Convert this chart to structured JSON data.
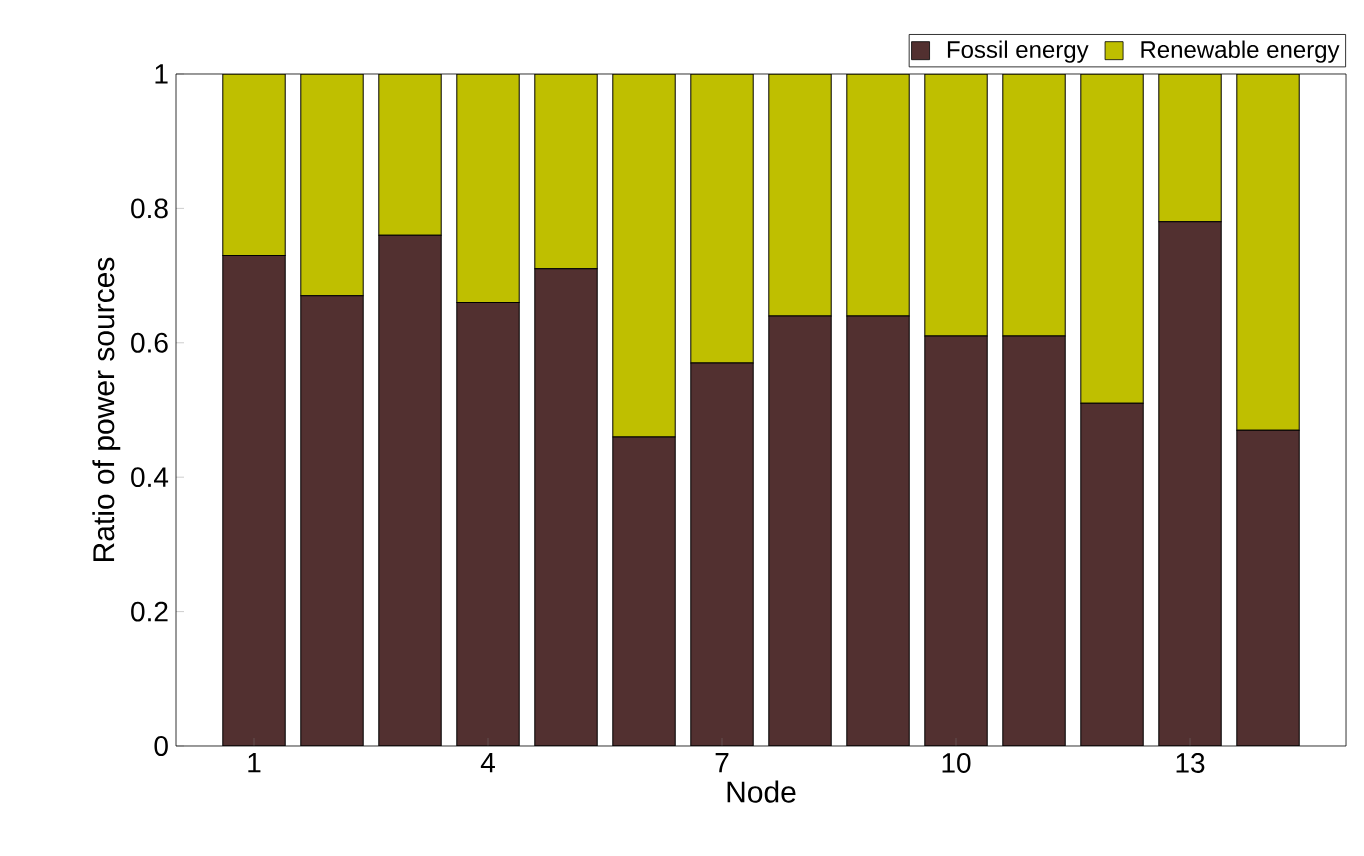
{
  "chart_data": {
    "type": "bar",
    "stacked": true,
    "xlabel": "Node",
    "ylabel": "Ratio of power sources",
    "x": [
      1,
      2,
      3,
      4,
      5,
      6,
      7,
      8,
      9,
      10,
      11,
      12,
      13,
      14
    ],
    "xlim": [
      0,
      15
    ],
    "xticks": [
      1,
      4,
      7,
      10,
      13
    ],
    "ylim": [
      0,
      1
    ],
    "yticks": [
      0,
      0.2,
      0.4,
      0.6,
      0.8,
      1
    ],
    "series": [
      {
        "name": "Fossil energy",
        "color": "#523030",
        "values": [
          0.73,
          0.67,
          0.76,
          0.66,
          0.71,
          0.46,
          0.57,
          0.64,
          0.64,
          0.61,
          0.61,
          0.51,
          0.78,
          0.47
        ]
      },
      {
        "name": "Renewable energy",
        "color": "#bfbf00",
        "values": [
          0.27,
          0.33,
          0.24,
          0.34,
          0.29,
          0.54,
          0.43,
          0.36,
          0.36,
          0.39,
          0.39,
          0.49,
          0.22,
          0.53
        ]
      }
    ],
    "legend": "top right",
    "grid": false
  }
}
